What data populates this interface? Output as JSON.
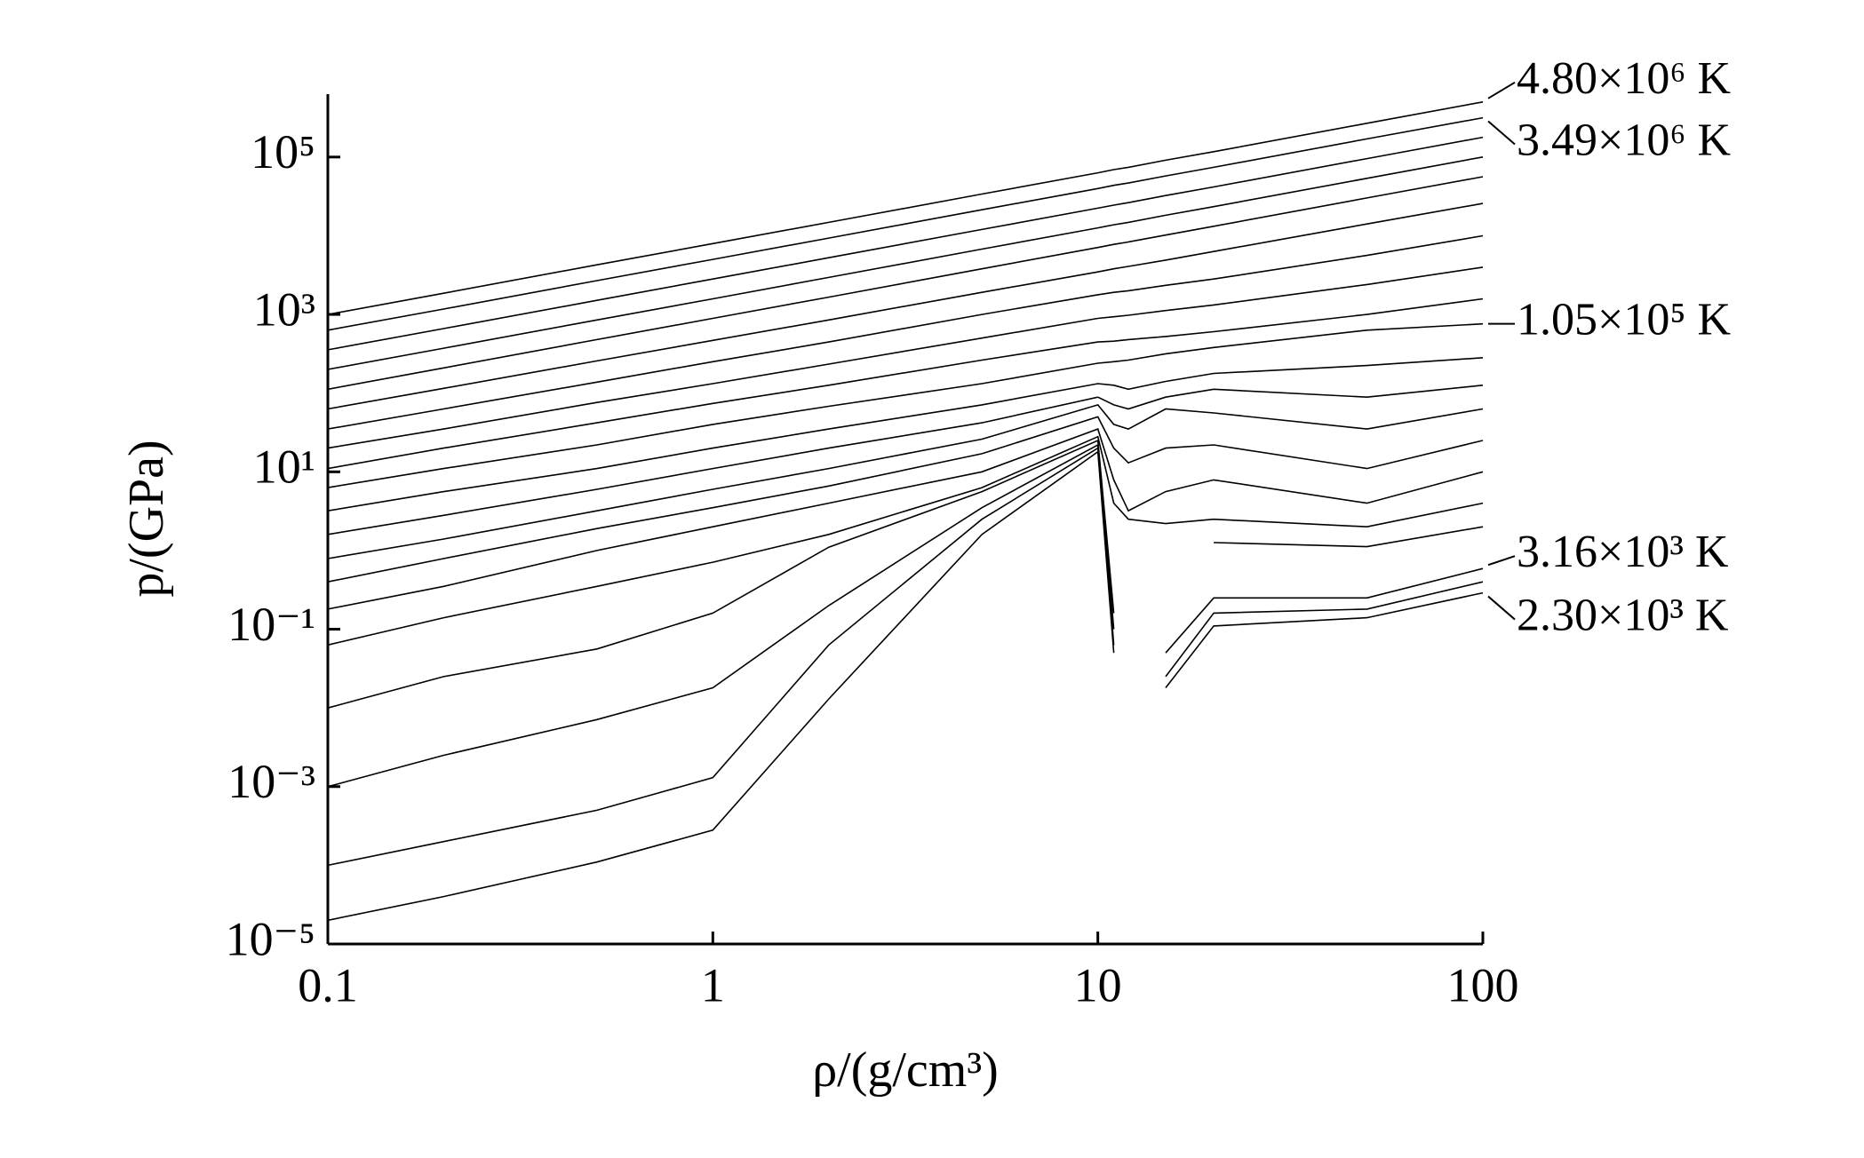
{
  "chart_data": {
    "type": "line",
    "color": "#000000",
    "xlabel": "ρ/(g/cm³)",
    "ylabel": "p/(GPa)",
    "xscale": "log",
    "yscale": "log",
    "xlim": [
      0.1,
      100
    ],
    "xticks": [
      0.1,
      1,
      10,
      100
    ],
    "ylim": [
      1e-05,
      630000
    ],
    "yticks": [
      {
        "value": 1e-05,
        "label": "10⁻⁵"
      },
      {
        "value": 0.001,
        "label": "10⁻³"
      },
      {
        "value": 0.1,
        "label": "10⁻¹"
      },
      {
        "value": 10,
        "label": "10¹"
      },
      {
        "value": 1000,
        "label": "10³"
      },
      {
        "value": 100000,
        "label": "10⁵"
      }
    ],
    "x": [
      0.1,
      0.2,
      0.5,
      1,
      2,
      5,
      10,
      11,
      12,
      15,
      20,
      50,
      100
    ],
    "series": [
      {
        "name": "4.80×10⁶ K",
        "values": [
          1000,
          1860,
          4270,
          7940,
          14800,
          33900,
          63100,
          69200,
          74100,
          91200,
          117000,
          269000,
          501000
        ]
      },
      {
        "name": "3.49×10⁶ K",
        "values": [
          631,
          1170,
          2690,
          5010,
          9330,
          21400,
          39800,
          43700,
          46800,
          57500,
          74100,
          170000,
          316000
        ]
      },
      {
        "values": [
          355,
          661,
          1510,
          2820,
          5250,
          12000,
          22400,
          24500,
          26300,
          32400,
          41700,
          95500,
          178000
        ]
      },
      {
        "values": [
          200,
          372,
          851,
          1580,
          2950,
          6760,
          12600,
          13800,
          14800,
          18200,
          23400,
          53700,
          100000
        ]
      },
      {
        "values": [
          112,
          209,
          479,
          891,
          1660,
          3800,
          7080,
          7760,
          8320,
          10200,
          13200,
          30200,
          56200
        ]
      },
      {
        "values": [
          63,
          115,
          257,
          468,
          851,
          1910,
          3470,
          3800,
          4070,
          4900,
          6310,
          14100,
          25700
        ]
      },
      {
        "values": [
          35,
          63,
          138,
          251,
          447,
          1000,
          1780,
          1910,
          2000,
          2340,
          2820,
          5620,
          10000
        ]
      },
      {
        "values": [
          20,
          35,
          76,
          132,
          234,
          501,
          891,
          933,
          977,
          1120,
          1320,
          2400,
          3980
        ]
      },
      {
        "values": [
          11,
          20,
          42,
          74,
          126,
          263,
          447,
          457,
          479,
          525,
          603,
          1000,
          1580
        ]
      },
      {
        "name": "1.05×10⁵ K",
        "values": [
          6.3,
          11,
          22,
          40,
          68,
          132,
          240,
          251,
          263,
          316,
          380,
          631,
          759
        ]
      },
      {
        "values": [
          3.2,
          5.6,
          11,
          20,
          35,
          71,
          132,
          126,
          112,
          141,
          178,
          224,
          282
        ]
      },
      {
        "values": [
          1.6,
          2.8,
          6.0,
          11,
          20,
          42,
          89,
          71,
          63,
          89,
          112,
          89,
          126
        ]
      },
      {
        "values": [
          0.79,
          1.4,
          3.2,
          6.0,
          11,
          26,
          71,
          40,
          35,
          63,
          56,
          35,
          63
        ]
      },
      {
        "values": [
          0.4,
          0.79,
          1.9,
          3.5,
          6.6,
          17,
          50,
          20,
          13,
          20,
          22,
          11,
          25
        ]
      },
      {
        "values": [
          0.18,
          0.35,
          1.0,
          2.0,
          4.0,
          10,
          35,
          7.9,
          3.2,
          5.6,
          7.9,
          4.0,
          10
        ]
      },
      {
        "values": [
          0.063,
          0.14,
          0.35,
          0.71,
          1.6,
          6.3,
          28,
          4.0,
          2.5,
          2.2,
          2.5,
          2.0,
          4.0
        ]
      },
      {
        "values": [
          0.01,
          0.025,
          0.056,
          0.16,
          1.1,
          5.6,
          25,
          0.16,
          null,
          null,
          1.26,
          1.12,
          2.0
        ]
      },
      {
        "name": "3.16×10³ K",
        "values": [
          0.001,
          0.0025,
          0.0071,
          0.018,
          0.2,
          3.5,
          22,
          0.1,
          null,
          0.05,
          0.25,
          0.25,
          0.59
        ]
      },
      {
        "values": [
          0.0001,
          0.0002,
          0.0005,
          0.0013,
          0.063,
          2.5,
          20,
          0.063,
          null,
          0.025,
          0.16,
          0.18,
          0.4
        ]
      },
      {
        "name": "2.30×10³ K",
        "values": [
          2e-05,
          4e-05,
          0.00011,
          0.00028,
          0.013,
          1.6,
          18,
          0.05,
          null,
          0.018,
          0.11,
          0.14,
          0.29
        ]
      }
    ]
  }
}
